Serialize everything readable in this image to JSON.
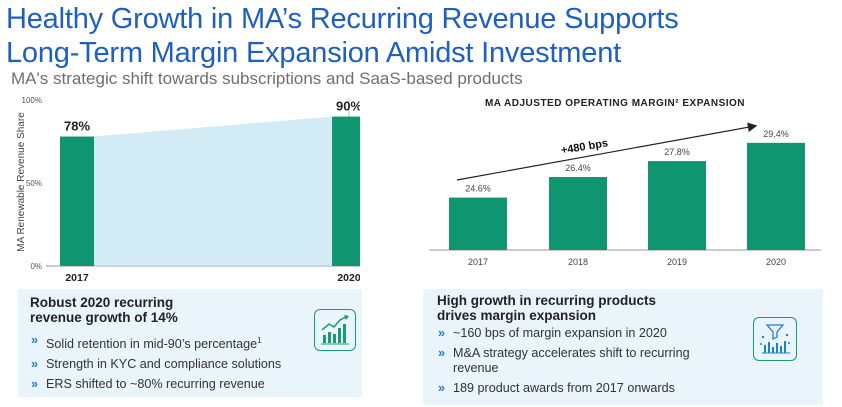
{
  "header": {
    "title_line1": "Healthy Growth in MA’s Recurring Revenue Supports",
    "title_line2": "Long-Term Margin Expansion Amidst Investment",
    "subtitle": "MA's strategic shift towards subscriptions and SaaS-based products"
  },
  "colors": {
    "title": "#1f5fbf",
    "bar": "#0f9670",
    "fill": "#bfe3f1",
    "panel": "#e9f4fb",
    "bullet": "#1f7fd0"
  },
  "chart_data": [
    {
      "type": "bar",
      "title": "",
      "categories": [
        "2017",
        "2020"
      ],
      "values": [
        78,
        90
      ],
      "value_labels": [
        "78%",
        "90%"
      ],
      "ylabel": "MA Renewable Revenue Share",
      "ylim": [
        0,
        100
      ],
      "yticks": [
        0,
        50,
        100
      ],
      "ytick_labels": [
        "0%",
        "50%",
        "100%"
      ],
      "grid": false
    },
    {
      "type": "bar",
      "title": "MA ADJUSTED OPERATING MARGIN² EXPANSION",
      "categories": [
        "2017",
        "2018",
        "2019",
        "2020"
      ],
      "values": [
        24.6,
        26.4,
        27.8,
        29.4
      ],
      "value_labels": [
        "24.6%",
        "26.4%",
        "27.8%",
        "29.4%"
      ],
      "annotation": "+480 bps",
      "grid": false
    }
  ],
  "left_panel": {
    "heading_line1": "Robust 2020 recurring",
    "heading_line2": "revenue growth of 14%",
    "bullets": [
      {
        "marker": "»",
        "text": "Solid retention in mid-90’s percentage",
        "sup": "1"
      },
      {
        "marker": "»",
        "text": "Strength in KYC and compliance solutions"
      },
      {
        "marker": "»",
        "text": "ERS shifted to ~80% recurring revenue"
      }
    ],
    "icon": "growth-chart-icon"
  },
  "right_panel": {
    "heading_line1": "High growth in recurring products",
    "heading_line2": "drives margin expansion",
    "bullets": [
      {
        "marker": "»",
        "text": "~160 bps of margin expansion in 2020"
      },
      {
        "marker": "»",
        "text_line1": "M&A strategy accelerates shift to recurring",
        "text_line2": "revenue"
      },
      {
        "marker": "»",
        "text": "189 product awards from 2017 onwards"
      }
    ],
    "icon": "funnel-analytics-icon"
  }
}
